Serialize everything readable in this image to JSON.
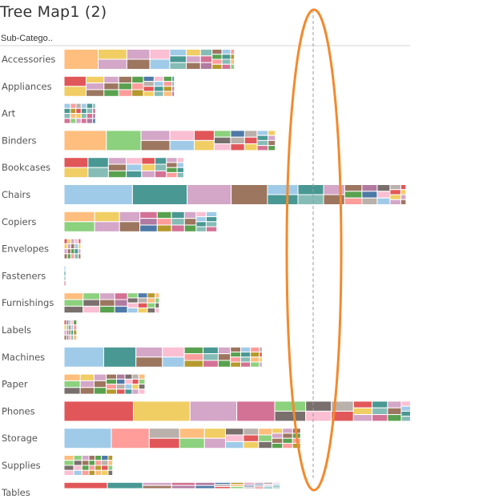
{
  "chart_data": {
    "type": "treemap",
    "title": "Tree Map1 (2)",
    "row_header": "Sub-Catego..",
    "rows": [
      {
        "label": "Accessories",
        "total": 41.7
      },
      {
        "label": "Appliances",
        "total": 27.0
      },
      {
        "label": "Art",
        "total": 7.7
      },
      {
        "label": "Binders",
        "total": 51.7
      },
      {
        "label": "Bookcases",
        "total": 29.3
      },
      {
        "label": "Chairs",
        "total": 83.7
      },
      {
        "label": "Copiers",
        "total": 37.4
      },
      {
        "label": "Envelopes",
        "total": 4.1
      },
      {
        "label": "Fasteners",
        "total": 0.4
      },
      {
        "label": "Furnishings",
        "total": 23.3
      },
      {
        "label": "Labels",
        "total": 3.1
      },
      {
        "label": "Machines",
        "total": 48.5
      },
      {
        "label": "Paper",
        "total": 19.8
      },
      {
        "label": "Phones",
        "total": 84.8
      },
      {
        "label": "Storage",
        "total": 57.9
      },
      {
        "label": "Supplies",
        "total": 11.9
      },
      {
        "label": "Tables",
        "total": 52.9
      }
    ],
    "annotation": {
      "shape": "ellipse",
      "color": "#f28a2e",
      "line": "dashed reference line inside ellipse"
    }
  },
  "colors": {
    "palette": [
      "#ffbe7d",
      "#e15759",
      "#a0cbe8",
      "#59a14f",
      "#b07aa1",
      "#8cd17d",
      "#f1ce63",
      "#499894",
      "#ff9d9a",
      "#4e79a7",
      "#79706e",
      "#d4a6c8",
      "#86bcb6",
      "#b6992d",
      "#bab0ac",
      "#fabfd2",
      "#9d7660",
      "#d37295"
    ],
    "annotation": "#f28a2e",
    "text": "#555555"
  }
}
